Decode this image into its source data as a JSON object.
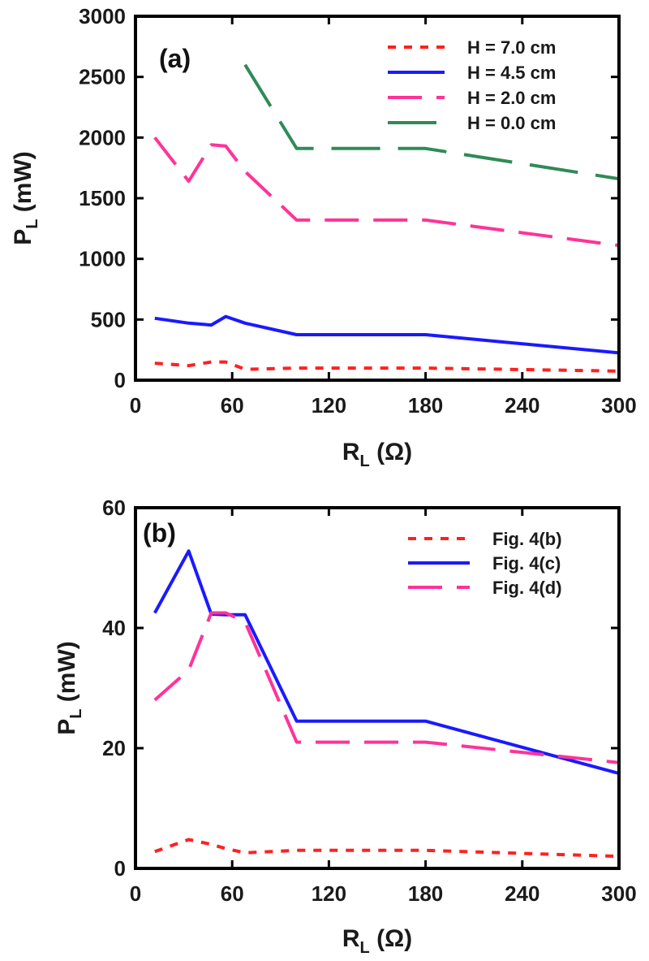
{
  "chart_data": [
    {
      "type": "line",
      "panel_label": "(a)",
      "xlabel": "R",
      "xlabel_sub": "L",
      "xlabel_unit": " (Ω)",
      "ylabel": "P",
      "ylabel_sub": "L",
      "ylabel_unit": " (mW)",
      "xlim": [
        0,
        300
      ],
      "ylim": [
        0,
        3000
      ],
      "xticks": [
        0,
        60,
        120,
        180,
        240,
        300
      ],
      "yticks": [
        0,
        500,
        1000,
        1500,
        2000,
        2500,
        3000
      ],
      "grid": false,
      "legend_position": "top-right",
      "series": [
        {
          "name": "H = 7.0 cm",
          "color": "#ff2020",
          "dash": "dot",
          "x": [
            12,
            33,
            47,
            56,
            68,
            100,
            180,
            300
          ],
          "y": [
            140,
            120,
            150,
            150,
            90,
            100,
            100,
            75
          ]
        },
        {
          "name": "H = 4.5 cm",
          "color": "#1a1aff",
          "dash": "solid",
          "x": [
            12,
            33,
            47,
            56,
            68,
            100,
            180,
            300
          ],
          "y": [
            510,
            470,
            455,
            525,
            470,
            375,
            375,
            225
          ]
        },
        {
          "name": "H = 2.0 cm",
          "color": "#ff3399",
          "dash": "dash",
          "x": [
            12,
            33,
            47,
            56,
            68,
            100,
            180,
            300
          ],
          "y": [
            2000,
            1640,
            1940,
            1930,
            1720,
            1320,
            1320,
            1110
          ]
        },
        {
          "name": "H = 0.0 cm",
          "color": "#2e8b57",
          "dash": "longdash",
          "x": [
            68,
            100,
            180,
            300
          ],
          "y": [
            2600,
            1910,
            1910,
            1660
          ]
        }
      ]
    },
    {
      "type": "line",
      "panel_label": "(b)",
      "xlabel": "R",
      "xlabel_sub": "L",
      "xlabel_unit": " (Ω)",
      "ylabel": "P",
      "ylabel_sub": "L",
      "ylabel_unit": " (mW)",
      "xlim": [
        0,
        300
      ],
      "ylim": [
        0,
        60
      ],
      "xticks": [
        0,
        60,
        120,
        180,
        240,
        300
      ],
      "yticks": [
        0,
        20,
        40,
        60
      ],
      "grid": false,
      "legend_position": "top-right",
      "series": [
        {
          "name": "Fig. 4(b)",
          "color": "#ff2020",
          "dash": "dot",
          "x": [
            12,
            33,
            47,
            56,
            68,
            100,
            180,
            300
          ],
          "y": [
            2.8,
            4.8,
            4.0,
            3.3,
            2.6,
            3.0,
            3.0,
            2.0
          ]
        },
        {
          "name": "Fig. 4(c)",
          "color": "#1a1aff",
          "dash": "solid",
          "x": [
            12,
            33,
            47,
            56,
            68,
            100,
            180,
            300
          ],
          "y": [
            42.5,
            52.8,
            42.3,
            42.2,
            42.2,
            24.5,
            24.5,
            15.8
          ]
        },
        {
          "name": "Fig. 4(d)",
          "color": "#ff3399",
          "dash": "dash",
          "x": [
            12,
            33,
            47,
            56,
            68,
            100,
            180,
            300
          ],
          "y": [
            28,
            33,
            42.5,
            42.5,
            41,
            21,
            21,
            17.6
          ]
        }
      ]
    }
  ]
}
